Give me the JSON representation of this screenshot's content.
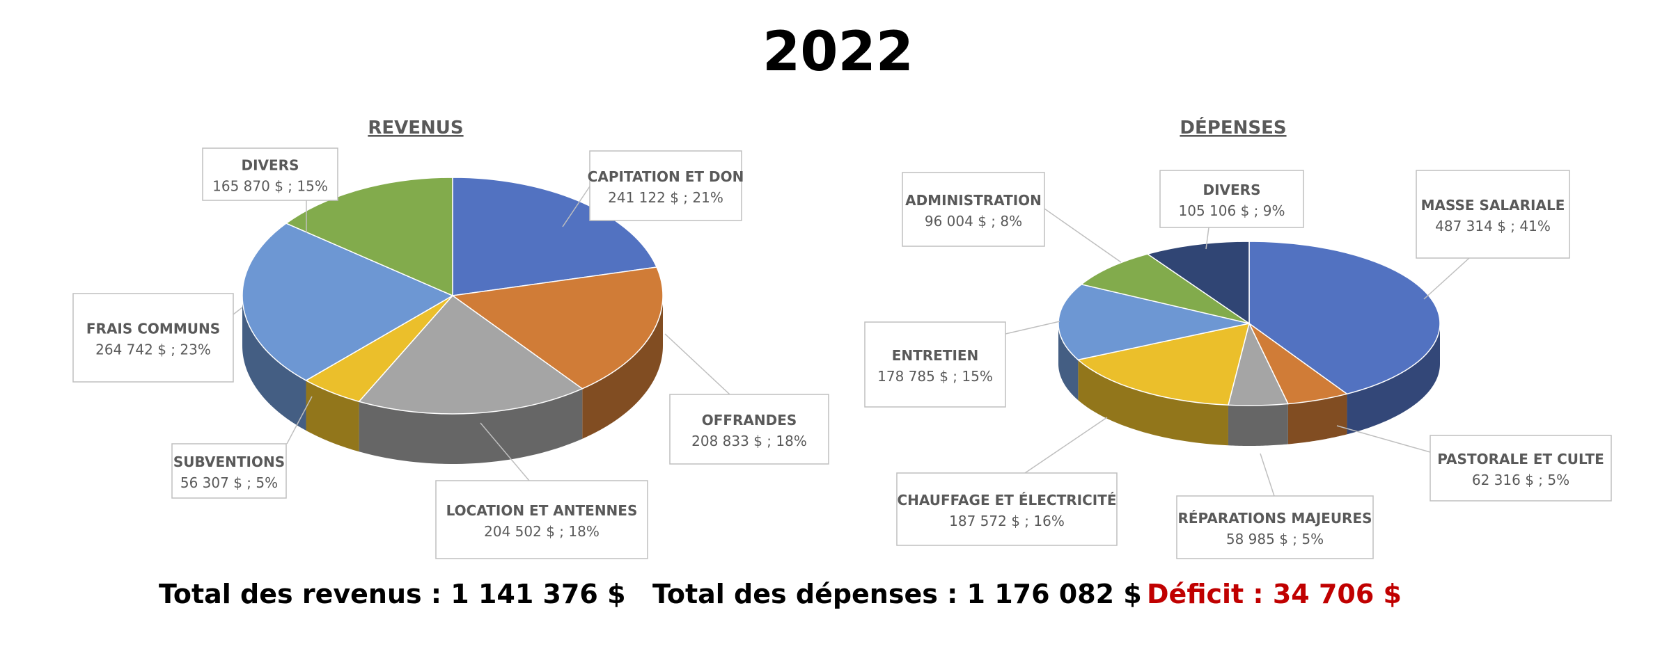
{
  "title": "2022",
  "chart_data": [
    {
      "type": "pie",
      "title": "REVENUS",
      "slices": [
        {
          "label": "CAPITATION ET DON",
          "value": 241122,
          "value_text": "241 122  $ ; 21%",
          "color": "#5272c1"
        },
        {
          "label": "OFFRANDES",
          "value": 208833,
          "value_text": "208 833  $ ; 18%",
          "color": "#d07c37"
        },
        {
          "label": "LOCATION ET ANTENNES",
          "value": 204502,
          "value_text": "204 502  $ ; 18%",
          "color": "#a5a5a5"
        },
        {
          "label": "SUBVENTIONS",
          "value": 56307,
          "value_text": "56 307  $ ; 5%",
          "color": "#ebbf2b"
        },
        {
          "label": "FRAIS COMMUNS",
          "value": 264742,
          "value_text": "264 742  $ ; 23%",
          "color": "#6d97d3"
        },
        {
          "label": "DIVERS",
          "value": 165870,
          "value_text": "165 870  $ ; 15%",
          "color": "#82ab4c"
        }
      ]
    },
    {
      "type": "pie",
      "title": "DÉPENSES",
      "slices": [
        {
          "label": "MASSE SALARIALE",
          "value": 487314,
          "value_text": "487 314  $ ; 41%",
          "color": "#5272c1"
        },
        {
          "label": "PASTORALE ET CULTE",
          "value": 62316,
          "value_text": "62 316  $ ; 5%",
          "color": "#d07c37"
        },
        {
          "label": "RÉPARATIONS MAJEURES",
          "value": 58985,
          "value_text": "58 985  $ ; 5%",
          "color": "#a5a5a5"
        },
        {
          "label": "CHAUFFAGE ET ÉLECTRICITÉ",
          "value": 187572,
          "value_text": "187 572  $ ; 16%",
          "color": "#ebbf2b"
        },
        {
          "label": "ENTRETIEN",
          "value": 178785,
          "value_text": "178 785  $ ; 15%",
          "color": "#6d97d3"
        },
        {
          "label": "ADMINISTRATION",
          "value": 96004,
          "value_text": "96 004  $ ; 8%",
          "color": "#82ab4c"
        },
        {
          "label": "DIVERS",
          "value": 105106,
          "value_text": "105 106  $ ; 9%",
          "color": "#304574"
        }
      ]
    }
  ],
  "totals": {
    "revenus": "Total des revenus : 1 141 376 $",
    "depenses": "Total des dépenses : 1 176 082 $",
    "deficit": "Déficit : 34 706 $",
    "deficit_color": "#c00000"
  }
}
